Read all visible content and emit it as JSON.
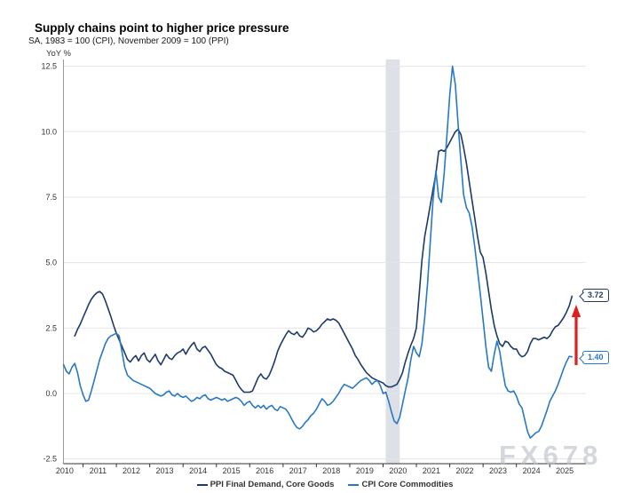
{
  "title": "Supply chains point to higher price pressure",
  "subtitle": "SA, 1983 = 100 (CPI), November 2009 = 100 (PPI)",
  "y_axis_unit": "YoY %",
  "watermark": "FX678",
  "end_labels": {
    "ppi": "3.72",
    "cpi": "1.40"
  },
  "legend": [
    {
      "label": "PPI Final Demand, Core Goods",
      "color": "#1e3a68"
    },
    {
      "label": "CPI Core Commodities",
      "color": "#2878c4"
    }
  ],
  "colors": {
    "ppi_line": "#1e3a68",
    "cpi_line": "#2878c4",
    "recession_band": "#dde0e7",
    "grid": "#e5e5e5",
    "axis": "#333333",
    "spine": "#9a9a9a",
    "tick_label": "#333333",
    "arrow": "#e01e1e"
  },
  "chart_data": {
    "type": "line",
    "title": "Supply chains point to higher price pressure",
    "subtitle": "SA, 1983 = 100 (CPI), November 2009 = 100 (PPI)",
    "ylabel": "YoY %",
    "ylim": [
      -2.5,
      12.5
    ],
    "y_ticks": [
      12.5,
      10.0,
      7.5,
      5.0,
      2.5,
      0.0,
      -2.5
    ],
    "x_ticks": [
      2010,
      2011,
      2012,
      2013,
      2014,
      2015,
      2016,
      2017,
      2018,
      2019,
      2020,
      2021,
      2022,
      2023,
      2024,
      2025
    ],
    "grid": true,
    "legend_position": "bottom",
    "recession_band": {
      "from": 2020.08,
      "to": 2020.5
    },
    "annotation_arrow": {
      "direction": "up",
      "meaning": "PPI pulling away from CPI",
      "color": "#e01e1e"
    },
    "series": [
      {
        "name": "PPI Final Demand, Core Goods",
        "color": "#1e3a68",
        "frequency": "monthly",
        "start_year_fraction": 2010.75,
        "last_value": 3.72,
        "values": [
          2.2,
          2.45,
          2.65,
          2.9,
          3.15,
          3.4,
          3.6,
          3.75,
          3.85,
          3.9,
          3.8,
          3.55,
          3.25,
          2.95,
          2.6,
          2.3,
          2.05,
          1.8,
          1.55,
          1.3,
          1.2,
          1.35,
          1.45,
          1.25,
          1.45,
          1.55,
          1.3,
          1.2,
          1.35,
          1.5,
          1.25,
          1.1,
          1.3,
          1.5,
          1.35,
          1.3,
          1.45,
          1.55,
          1.6,
          1.7,
          1.5,
          1.7,
          1.85,
          1.95,
          1.7,
          1.6,
          1.75,
          1.8,
          1.65,
          1.5,
          1.3,
          1.1,
          1.0,
          0.95,
          0.85,
          0.8,
          0.75,
          0.7,
          0.5,
          0.3,
          0.15,
          0.05,
          0.05,
          0.05,
          0.1,
          0.35,
          0.6,
          0.75,
          0.6,
          0.55,
          0.7,
          0.95,
          1.25,
          1.6,
          1.85,
          2.05,
          2.25,
          2.4,
          2.3,
          2.25,
          2.35,
          2.2,
          2.15,
          2.3,
          2.5,
          2.45,
          2.35,
          2.4,
          2.5,
          2.65,
          2.75,
          2.85,
          2.8,
          2.85,
          2.8,
          2.7,
          2.5,
          2.3,
          2.1,
          1.9,
          1.7,
          1.45,
          1.3,
          1.1,
          0.95,
          0.8,
          0.7,
          0.6,
          0.55,
          0.5,
          0.45,
          0.4,
          0.3,
          0.25,
          0.25,
          0.3,
          0.35,
          0.55,
          0.8,
          1.2,
          1.55,
          1.85,
          2.1,
          2.5,
          3.8,
          5.1,
          6.0,
          6.6,
          7.2,
          7.8,
          8.4,
          9.25,
          9.3,
          9.25,
          9.4,
          9.6,
          9.8,
          10.0,
          10.1,
          9.9,
          9.4,
          8.8,
          8.1,
          7.4,
          6.7,
          6.0,
          5.4,
          5.2,
          4.6,
          3.9,
          3.2,
          2.6,
          2.2,
          1.9,
          1.8,
          2.0,
          1.95,
          1.8,
          1.7,
          1.7,
          1.5,
          1.4,
          1.45,
          1.6,
          1.9,
          2.1,
          2.1,
          2.05,
          2.1,
          2.15,
          2.1,
          2.2,
          2.4,
          2.55,
          2.6,
          2.75,
          2.9,
          3.1,
          3.35,
          3.72
        ]
      },
      {
        "name": "CPI Core Commodities",
        "color": "#2878c4",
        "frequency": "monthly",
        "start_year_fraction": 2010.4167,
        "last_value": 1.4,
        "values": [
          1.1,
          0.85,
          0.75,
          1.0,
          1.15,
          0.8,
          0.3,
          -0.05,
          -0.3,
          -0.25,
          0.1,
          0.5,
          0.9,
          1.3,
          1.6,
          1.9,
          2.1,
          2.2,
          2.25,
          2.3,
          2.2,
          1.6,
          1.0,
          0.7,
          0.6,
          0.5,
          0.45,
          0.4,
          0.35,
          0.3,
          0.25,
          0.2,
          0.1,
          0.0,
          -0.05,
          -0.1,
          -0.05,
          0.05,
          0.1,
          -0.05,
          -0.1,
          0.0,
          -0.1,
          -0.15,
          -0.1,
          -0.2,
          -0.3,
          -0.25,
          -0.15,
          -0.2,
          -0.1,
          -0.05,
          -0.2,
          -0.25,
          -0.2,
          -0.15,
          -0.2,
          -0.25,
          -0.2,
          -0.3,
          -0.25,
          -0.2,
          -0.15,
          -0.2,
          -0.3,
          -0.45,
          -0.35,
          -0.3,
          -0.45,
          -0.55,
          -0.45,
          -0.55,
          -0.45,
          -0.6,
          -0.5,
          -0.45,
          -0.6,
          -0.65,
          -0.5,
          -0.55,
          -0.6,
          -0.75,
          -0.95,
          -1.15,
          -1.3,
          -1.35,
          -1.25,
          -1.1,
          -1.0,
          -0.85,
          -0.75,
          -0.6,
          -0.4,
          -0.2,
          -0.3,
          -0.45,
          -0.4,
          -0.3,
          -0.15,
          0.0,
          0.2,
          0.35,
          0.3,
          0.25,
          0.2,
          0.3,
          0.4,
          0.5,
          0.55,
          0.6,
          0.5,
          0.35,
          0.45,
          0.5,
          0.3,
          0.0,
          0.05,
          -0.3,
          -0.7,
          -1.05,
          -1.15,
          -0.9,
          -0.4,
          0.1,
          0.6,
          1.3,
          1.8,
          1.55,
          1.4,
          1.9,
          2.9,
          4.2,
          5.8,
          7.4,
          8.5,
          7.5,
          7.3,
          8.4,
          9.9,
          11.4,
          12.5,
          11.8,
          10.3,
          8.9,
          7.6,
          7.1,
          6.9,
          6.4,
          5.6,
          4.7,
          3.8,
          2.8,
          1.8,
          1.0,
          0.85,
          1.5,
          2.0,
          1.6,
          0.9,
          0.3,
          0.1,
          0.05,
          0.1,
          -0.1,
          -0.4,
          -0.55,
          -1.0,
          -1.45,
          -1.7,
          -1.6,
          -1.5,
          -1.45,
          -1.25,
          -0.95,
          -0.65,
          -0.3,
          -0.1,
          0.1,
          0.35,
          0.65,
          0.95,
          1.2,
          1.42,
          1.4
        ]
      }
    ]
  }
}
